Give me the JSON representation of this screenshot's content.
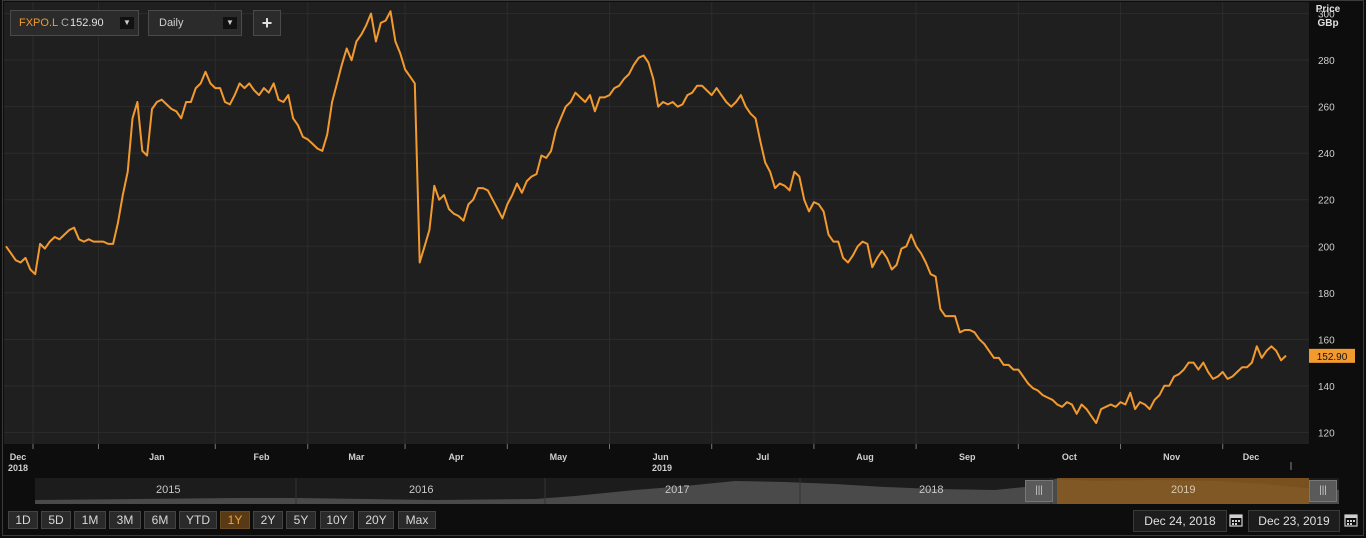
{
  "toolbar": {
    "symbol": "FXPO.L",
    "close_prefix": "C",
    "close_value": "152.90",
    "interval": "Daily",
    "add_label": "+"
  },
  "axis": {
    "y_title_line1": "Price",
    "y_title_line2": "GBp",
    "year_label_left": "2018",
    "year_label_center": "2019",
    "last_price_tag": "152.90"
  },
  "navigator": {
    "years": [
      "2015",
      "2016",
      "2017",
      "2018",
      "2019"
    ]
  },
  "range_buttons": [
    {
      "label": "1D",
      "active": false
    },
    {
      "label": "5D",
      "active": false
    },
    {
      "label": "1M",
      "active": false
    },
    {
      "label": "3M",
      "active": false
    },
    {
      "label": "6M",
      "active": false
    },
    {
      "label": "YTD",
      "active": false
    },
    {
      "label": "1Y",
      "active": true
    },
    {
      "label": "2Y",
      "active": false
    },
    {
      "label": "5Y",
      "active": false
    },
    {
      "label": "10Y",
      "active": false
    },
    {
      "label": "20Y",
      "active": false
    },
    {
      "label": "Max",
      "active": false
    }
  ],
  "date_range": {
    "start": "Dec 24, 2018",
    "end": "Dec 23, 2019"
  },
  "colors": {
    "line": "#f39a2e",
    "background": "#1f1f1f",
    "grid": "#2c2c2c",
    "tag_bg": "#f39a2e",
    "navigator_highlight": "#8a5a20"
  },
  "chart_data": {
    "type": "line",
    "title": "",
    "xlabel": "",
    "ylabel": "Price GBp",
    "ylim": [
      115,
      305
    ],
    "y_ticks": [
      120,
      140,
      160,
      180,
      200,
      220,
      240,
      260,
      280,
      300
    ],
    "x_ticks": [
      "Dec",
      "Jan",
      "Feb",
      "Mar",
      "Apr",
      "May",
      "Jun",
      "Jul",
      "Aug",
      "Sep",
      "Oct",
      "Nov",
      "Dec"
    ],
    "grid": true,
    "series": [
      {
        "name": "FXPO.L",
        "values": [
          200,
          197,
          194,
          193,
          195,
          190,
          188,
          201,
          199,
          202,
          204,
          203,
          205,
          207,
          208,
          203,
          202,
          203,
          202,
          202,
          202,
          201,
          201,
          210,
          222,
          232,
          255,
          262,
          241,
          239,
          259,
          262,
          263,
          261,
          259,
          258,
          255,
          262,
          262,
          268,
          270,
          275,
          270,
          268,
          268,
          262,
          261,
          265,
          270,
          268,
          270,
          267,
          265,
          268,
          266,
          270,
          263,
          262,
          265,
          255,
          252,
          247,
          246,
          244,
          242,
          241,
          248,
          262,
          270,
          278,
          285,
          280,
          288,
          291,
          295,
          300,
          288,
          296,
          297,
          301,
          288,
          283,
          276,
          273,
          270,
          193,
          200,
          207,
          226,
          220,
          222,
          216,
          214,
          213,
          211,
          218,
          220,
          225,
          225,
          224,
          220,
          216,
          212,
          218,
          222,
          227,
          223,
          228,
          230,
          231,
          239,
          238,
          241,
          250,
          255,
          260,
          262,
          266,
          264,
          262,
          265,
          258,
          264,
          264,
          265,
          268,
          269,
          272,
          274,
          278,
          281,
          282,
          279,
          272,
          260,
          262,
          261,
          262,
          260,
          261,
          265,
          266,
          269,
          269,
          267,
          265,
          268,
          265,
          262,
          260,
          262,
          265,
          260,
          257,
          255,
          245,
          236,
          232,
          225,
          227,
          226,
          224,
          232,
          230,
          220,
          215,
          219,
          218,
          215,
          205,
          202,
          202,
          195,
          193,
          196,
          200,
          202,
          201,
          191,
          195,
          198,
          195,
          190,
          192,
          199,
          200,
          205,
          200,
          197,
          193,
          188,
          187,
          173,
          170,
          170,
          170,
          163,
          164,
          164,
          163,
          160,
          158,
          155,
          152,
          152,
          149,
          149,
          147,
          147,
          144,
          141,
          139,
          138,
          136,
          135,
          134,
          132,
          131,
          133,
          132,
          128,
          132,
          130,
          127,
          124,
          130,
          131,
          132,
          131,
          133,
          132,
          137,
          130,
          133,
          132,
          130,
          134,
          136,
          140,
          140,
          144,
          145,
          147,
          150,
          150,
          147,
          150,
          146,
          143,
          144,
          146,
          143,
          144,
          146,
          148,
          148,
          150,
          157,
          152,
          155,
          157,
          155,
          151,
          153
        ]
      }
    ]
  }
}
